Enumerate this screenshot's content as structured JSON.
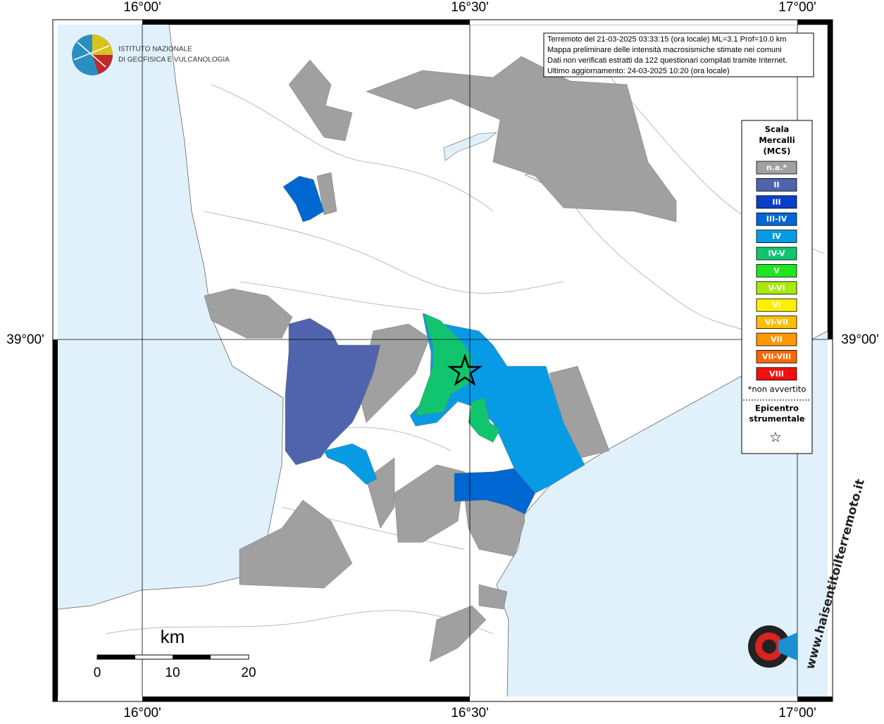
{
  "graticule": {
    "lon_labels": [
      "16°00'",
      "16°30'",
      "17°00'"
    ],
    "lat_labels": [
      "39°00'"
    ]
  },
  "logo": {
    "lines": [
      "ISTITUTO NAZIONALE",
      "DI GEOFISICA E VULCANOLOGIA"
    ]
  },
  "info_box": {
    "lines": [
      "Terremoto del 21-03-2025 03:33:15 (ora locale) ML=3.1 Prof=10.0 km",
      "Mappa preliminare delle intensità macrosismiche stimate nei comuni",
      "Dati non verificati estratti da 122 questionari compilati tramite Internet.",
      "Ultimo aggiornamento: 24-03-2025 10:20 (ora locale)"
    ]
  },
  "legend": {
    "title": [
      "Scala",
      "Mercalli",
      "(MCS)"
    ],
    "items": [
      {
        "label": "n.a.*",
        "color": "#a0a0a0"
      },
      {
        "label": "II",
        "color": "#4f64ad"
      },
      {
        "label": "III",
        "color": "#0a3fc8"
      },
      {
        "label": "III-IV",
        "color": "#0066d2"
      },
      {
        "label": "IV",
        "color": "#079be6"
      },
      {
        "label": "IV-V",
        "color": "#10c56e"
      },
      {
        "label": "V",
        "color": "#1ee620"
      },
      {
        "label": "V-VI",
        "color": "#a8e80c"
      },
      {
        "label": "VI",
        "color": "#fff000"
      },
      {
        "label": "VI-VII",
        "color": "#ffbe00"
      },
      {
        "label": "VII",
        "color": "#ff9800"
      },
      {
        "label": "VII-VIII",
        "color": "#ff6600"
      },
      {
        "label": "VIII",
        "color": "#f01010"
      }
    ],
    "note": "*non avvertito",
    "epicenter": [
      "Epicentro",
      "strumentale"
    ],
    "star": "☆"
  },
  "scale_bar": {
    "unit": "km",
    "labels": [
      "0",
      "10",
      "20"
    ]
  },
  "watermark": "www.haisentitoilterremoto.it"
}
